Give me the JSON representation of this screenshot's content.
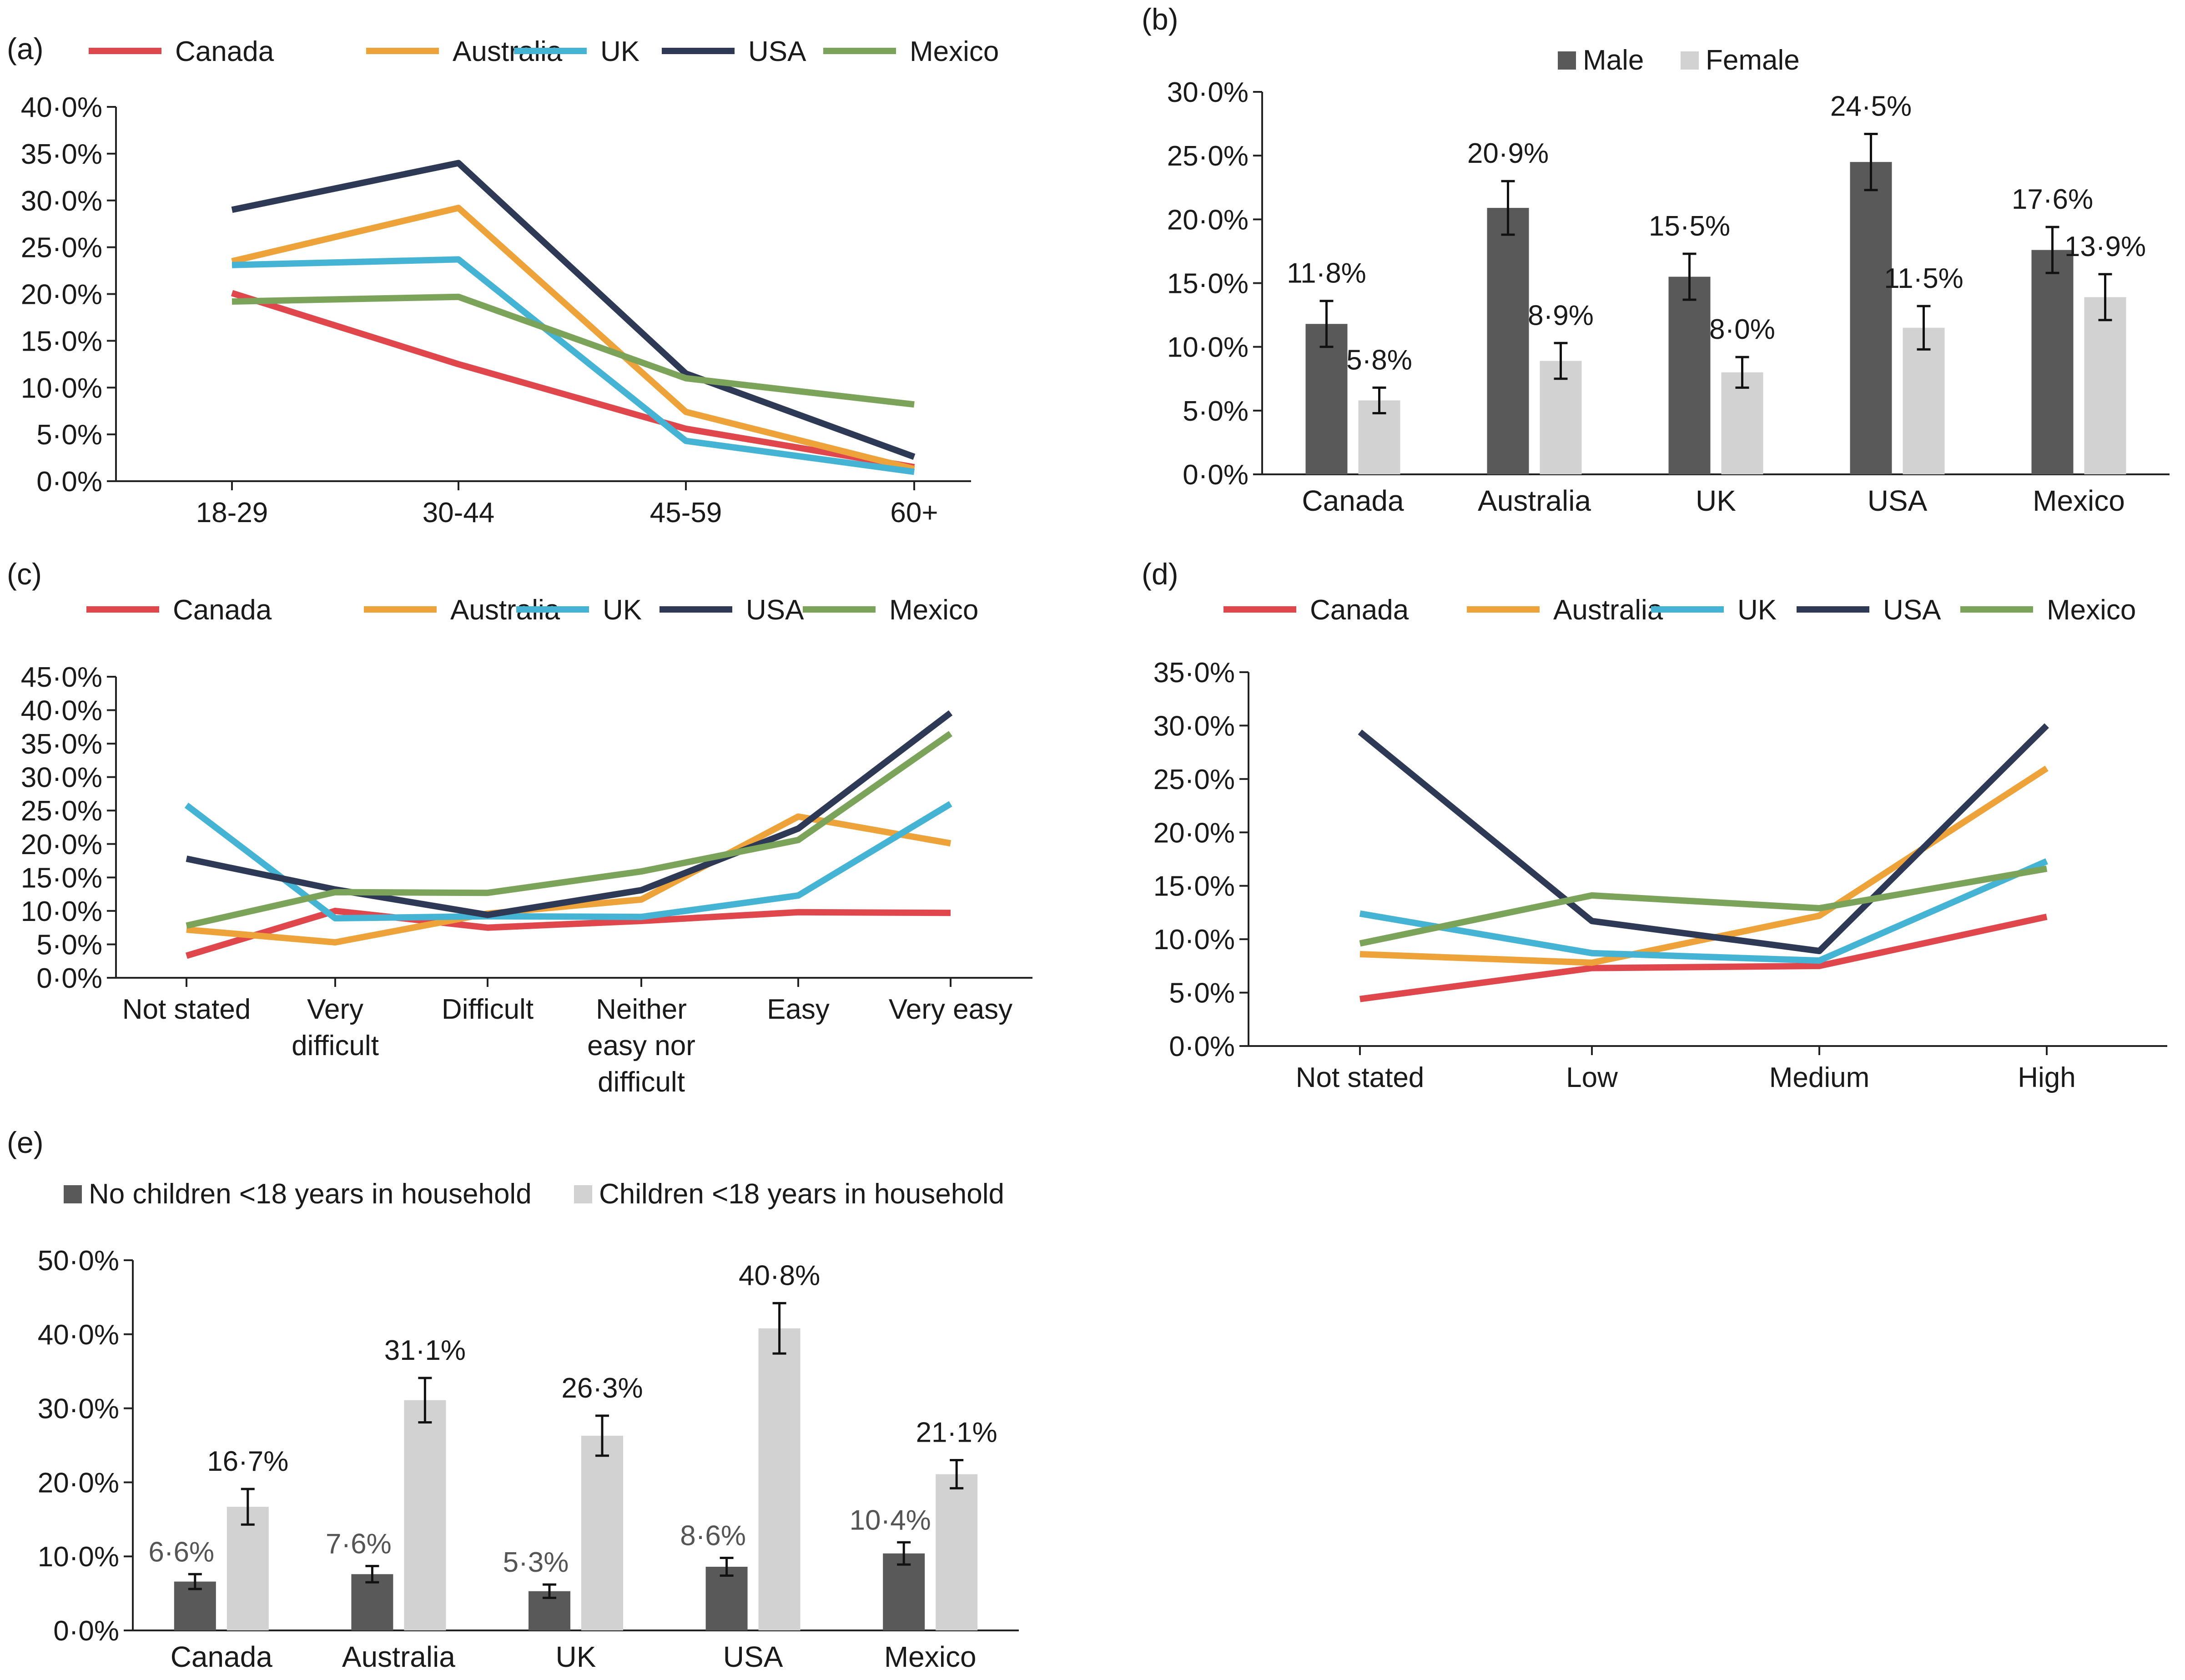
{
  "colors": {
    "Canada": "#e0474c",
    "Australia": "#eda33a",
    "UK": "#45b4d4",
    "USA": "#2e3a55",
    "Mexico": "#7ba35a",
    "male": "#595959",
    "female": "#d2d2d2",
    "no_children": "#595959",
    "children": "#d2d2d2",
    "axis": "#222222"
  },
  "chart_data": [
    {
      "id": "a",
      "panel_label": "(a)",
      "type": "line",
      "categories": [
        "18-29",
        "30-44",
        "45-59",
        "60+"
      ],
      "y_ticks": [
        "0·0%",
        "5·0%",
        "10·0%",
        "15·0%",
        "20·0%",
        "25·0%",
        "30·0%",
        "35·0%",
        "40·0%"
      ],
      "ylim": [
        0,
        40
      ],
      "legend": "top",
      "series": [
        {
          "name": "Canada",
          "values": [
            20.1,
            12.5,
            5.6,
            1.5
          ]
        },
        {
          "name": "Australia",
          "values": [
            23.5,
            29.2,
            7.4,
            1.3
          ]
        },
        {
          "name": "UK",
          "values": [
            23.1,
            23.7,
            4.3,
            1.0
          ]
        },
        {
          "name": "USA",
          "values": [
            29.0,
            34.0,
            11.5,
            2.6
          ]
        },
        {
          "name": "Mexico",
          "values": [
            19.2,
            19.7,
            11.0,
            8.2
          ]
        }
      ]
    },
    {
      "id": "b",
      "panel_label": "(b)",
      "type": "bar",
      "categories": [
        "Canada",
        "Australia",
        "UK",
        "USA",
        "Mexico"
      ],
      "y_ticks": [
        "0·0%",
        "5·0%",
        "10·0%",
        "15·0%",
        "20·0%",
        "25·0%",
        "30·0%"
      ],
      "ylim": [
        0,
        30
      ],
      "legend": "top",
      "series": [
        {
          "name": "Male",
          "values": [
            11.8,
            20.9,
            15.5,
            24.5,
            17.6
          ],
          "labels": [
            "11·8%",
            "20·9%",
            "15·5%",
            "24·5%",
            "17·6%"
          ],
          "err": [
            1.8,
            2.1,
            1.8,
            2.2,
            1.8
          ]
        },
        {
          "name": "Female",
          "values": [
            5.8,
            8.9,
            8.0,
            11.5,
            13.9
          ],
          "labels": [
            "5·8%",
            "8·9%",
            "8·0%",
            "11·5%",
            "13·9%"
          ],
          "err": [
            1.0,
            1.4,
            1.2,
            1.7,
            1.8
          ]
        }
      ]
    },
    {
      "id": "c",
      "panel_label": "(c)",
      "type": "line",
      "categories": [
        "Not stated",
        "Very difficult",
        "Difficult",
        "Neither easy nor difficult",
        "Easy",
        "Very easy"
      ],
      "category_lines": [
        [
          "Not stated"
        ],
        [
          "Very",
          "difficult"
        ],
        [
          "Difficult"
        ],
        [
          "Neither",
          "easy nor",
          "difficult"
        ],
        [
          "Easy"
        ],
        [
          "Very easy"
        ]
      ],
      "y_ticks": [
        "0·0%",
        "5·0%",
        "10·0%",
        "15·0%",
        "20·0%",
        "25·0%",
        "30·0%",
        "35·0%",
        "40·0%",
        "45·0%"
      ],
      "ylim": [
        0,
        45
      ],
      "legend": "top",
      "series": [
        {
          "name": "Canada",
          "values": [
            3.3,
            10.0,
            7.5,
            8.5,
            9.8,
            9.7
          ]
        },
        {
          "name": "Australia",
          "values": [
            7.2,
            5.3,
            9.6,
            11.7,
            24.1,
            20.1
          ]
        },
        {
          "name": "UK",
          "values": [
            25.8,
            8.9,
            9.2,
            9.1,
            12.3,
            26.0
          ]
        },
        {
          "name": "USA",
          "values": [
            17.8,
            13.2,
            9.4,
            13.1,
            22.3,
            39.6
          ]
        },
        {
          "name": "Mexico",
          "values": [
            7.8,
            12.8,
            12.7,
            15.9,
            20.6,
            36.5
          ]
        }
      ]
    },
    {
      "id": "d",
      "panel_label": "(d)",
      "type": "line",
      "categories": [
        "Not stated",
        "Low",
        "Medium",
        "High"
      ],
      "y_ticks": [
        "0·0%",
        "5·0%",
        "10·0%",
        "15·0%",
        "20·0%",
        "25·0%",
        "30·0%",
        "35·0%"
      ],
      "ylim": [
        0,
        35
      ],
      "legend": "top",
      "series": [
        {
          "name": "Canada",
          "values": [
            4.4,
            7.3,
            7.5,
            12.1
          ]
        },
        {
          "name": "Australia",
          "values": [
            8.6,
            7.8,
            12.2,
            26.0
          ]
        },
        {
          "name": "UK",
          "values": [
            12.4,
            8.7,
            8.0,
            17.3
          ]
        },
        {
          "name": "USA",
          "values": [
            29.4,
            11.7,
            8.9,
            30.0
          ]
        },
        {
          "name": "Mexico",
          "values": [
            9.6,
            14.1,
            12.9,
            16.6
          ]
        }
      ]
    },
    {
      "id": "e",
      "panel_label": "(e)",
      "type": "bar",
      "categories": [
        "Canada",
        "Australia",
        "UK",
        "USA",
        "Mexico"
      ],
      "y_ticks": [
        "0·0%",
        "10·0%",
        "20·0%",
        "30·0%",
        "40·0%",
        "50·0%"
      ],
      "ylim": [
        0,
        50
      ],
      "legend": "top-left",
      "series": [
        {
          "name": "No children <18 years in household",
          "values": [
            6.6,
            7.6,
            5.3,
            8.6,
            10.4
          ],
          "labels": [
            "6·6%",
            "7·6%",
            "5·3%",
            "8·6%",
            "10·4%"
          ],
          "err": [
            1.0,
            1.1,
            0.9,
            1.2,
            1.5
          ]
        },
        {
          "name": "Children <18 years in household",
          "values": [
            16.7,
            31.1,
            26.3,
            40.8,
            21.1
          ],
          "labels": [
            "16·7%",
            "31·1%",
            "26·3%",
            "40·8%",
            "21·1%"
          ],
          "err": [
            2.4,
            3.0,
            2.7,
            3.4,
            1.9
          ]
        }
      ]
    }
  ]
}
